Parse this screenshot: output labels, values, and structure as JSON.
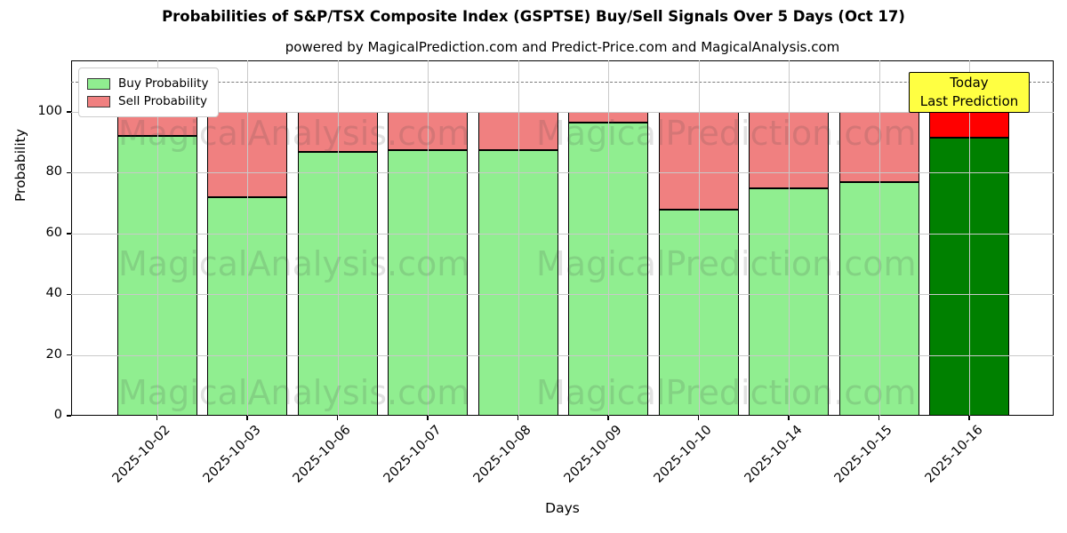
{
  "header": {
    "title": "Probabilities of S&P/TSX Composite Index (GSPTSE) Buy/Sell Signals Over 5 Days (Oct 17)",
    "subtitle": "powered by MagicalPrediction.com and Predict-Price.com and MagicalAnalysis.com"
  },
  "axes": {
    "xlabel": "Days",
    "ylabel": "Probability"
  },
  "legend": {
    "items": [
      {
        "label": "Buy Probability",
        "color": "#90EE90"
      },
      {
        "label": "Sell Probability",
        "color": "#F08080"
      }
    ]
  },
  "annotation": {
    "lines": [
      "Today",
      "Last Prediction"
    ],
    "bg_color": "#FFFF42",
    "for_category": "2025-10-16"
  },
  "watermarks": {
    "left_text": "MagicalAnalysis.com",
    "right_text": "MagicalPrediction.com"
  },
  "chart_data": {
    "type": "bar",
    "stacked": true,
    "title": "Probabilities of S&P/TSX Composite Index (GSPTSE) Buy/Sell Signals Over 5 Days (Oct 17)",
    "subtitle": "powered by MagicalPrediction.com and Predict-Price.com and MagicalAnalysis.com",
    "xlabel": "Days",
    "ylabel": "Probability",
    "categories": [
      "2025-10-02",
      "2025-10-03",
      "2025-10-06",
      "2025-10-07",
      "2025-10-08",
      "2025-10-09",
      "2025-10-10",
      "2025-10-14",
      "2025-10-15",
      "2025-10-16"
    ],
    "series": [
      {
        "name": "Buy Probability",
        "color": "#90EE90",
        "values": [
          92,
          72,
          87,
          87.5,
          87.5,
          96.5,
          68,
          75,
          77,
          91.5
        ]
      },
      {
        "name": "Sell Probability",
        "color": "#F08080",
        "values": [
          8,
          28,
          13,
          12.5,
          12.5,
          3.5,
          32,
          25,
          23,
          8.5
        ]
      }
    ],
    "highlight": {
      "category": "2025-10-16",
      "buy_color": "#008000",
      "sell_color": "#FF0000"
    },
    "ylim": [
      0,
      117
    ],
    "yticks": [
      0,
      20,
      40,
      60,
      80,
      100
    ],
    "dashed_line_y": 110,
    "grid": true,
    "legend_position": "upper-left"
  }
}
